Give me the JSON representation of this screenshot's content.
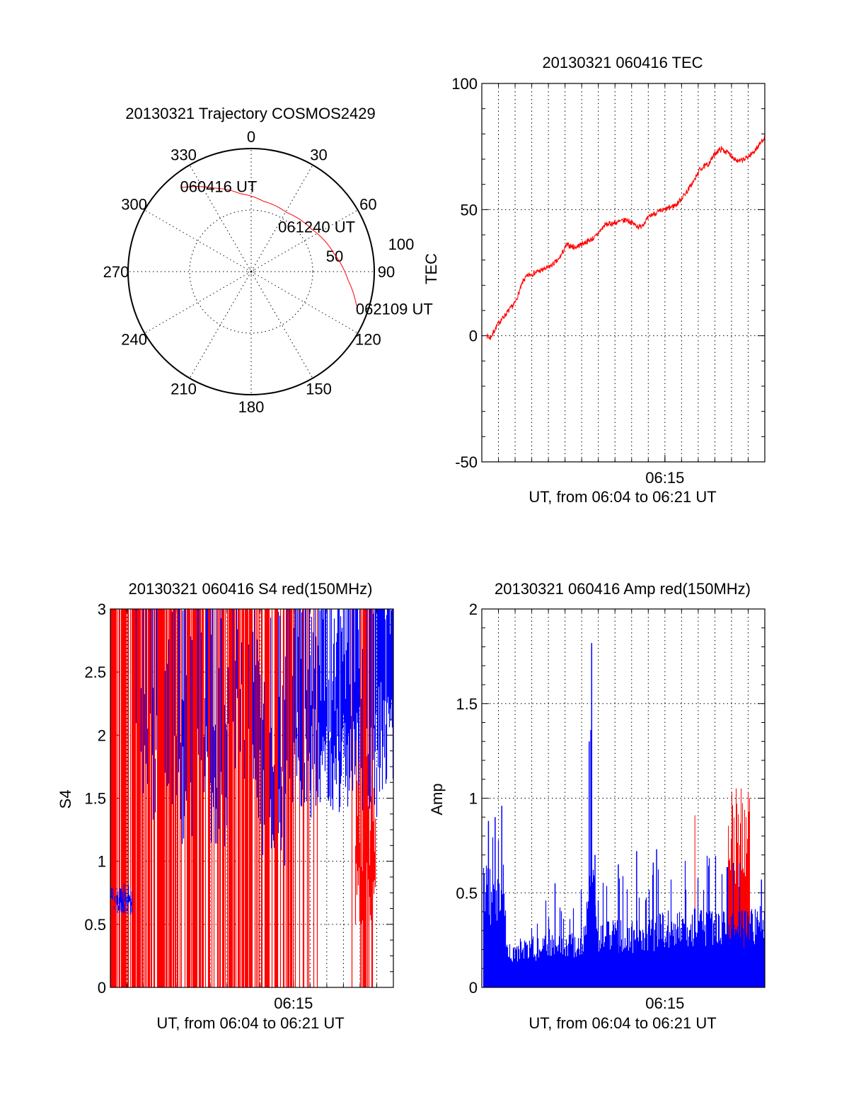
{
  "chart_data": [
    {
      "type": "polar",
      "title": "20130321 Trajectory COSMOS2429",
      "angle_labels": [
        "0",
        "30",
        "60",
        "90",
        "120",
        "150",
        "180",
        "210",
        "240",
        "270",
        "300",
        "330"
      ],
      "radial_labels": [
        "50",
        "100"
      ],
      "radial_axis_label": "TEC",
      "rlim": [
        0,
        100
      ],
      "series": [
        {
          "name": "trajectory",
          "color": "#ff0000",
          "points_az_r": [
            [
              320,
              89
            ],
            [
              335,
              75
            ],
            [
              352,
              64
            ],
            [
              10,
              58
            ],
            [
              31,
              56
            ],
            [
              55,
              60
            ],
            [
              78,
              69
            ],
            [
              95,
              79
            ],
            [
              108,
              90
            ]
          ]
        }
      ],
      "annotations": [
        {
          "text": "060416 UT",
          "az": 320,
          "r": 89
        },
        {
          "text": "061240 UT",
          "az": 31,
          "r": 56
        },
        {
          "text": "062109 UT",
          "az": 108,
          "r": 90
        }
      ]
    },
    {
      "type": "line",
      "title": "20130321 060416 TEC",
      "xlabel": "UT, from 06:04 to 06:21 UT",
      "ylabel": "",
      "x_unit": "minutes after 06:04",
      "xlim": [
        0,
        17
      ],
      "ylim": [
        -50,
        100
      ],
      "yticks": [
        "100",
        "50",
        "0",
        "-50"
      ],
      "xticks": [
        {
          "t": 11,
          "label": "06:15"
        }
      ],
      "grid": true,
      "series": [
        {
          "name": "TEC",
          "color": "#ff0000",
          "points": [
            [
              0.3,
              0
            ],
            [
              0.5,
              -1
            ],
            [
              1,
              5
            ],
            [
              1.5,
              9
            ],
            [
              2,
              13
            ],
            [
              2.5,
              22
            ],
            [
              2.8,
              24
            ],
            [
              4,
              27
            ],
            [
              4.6,
              30
            ],
            [
              5.1,
              36
            ],
            [
              5.6,
              35
            ],
            [
              5.9,
              36
            ],
            [
              6.8,
              39
            ],
            [
              7.4,
              44
            ],
            [
              8.2,
              45
            ],
            [
              8.7,
              46
            ],
            [
              9.2,
              44
            ],
            [
              9.5,
              43
            ],
            [
              10.2,
              48
            ],
            [
              11,
              50
            ],
            [
              11.7,
              52
            ],
            [
              12.3,
              57
            ],
            [
              12.8,
              62
            ],
            [
              13.1,
              66
            ],
            [
              13.6,
              68
            ],
            [
              14.1,
              73
            ],
            [
              14.4,
              74
            ],
            [
              14.9,
              72
            ],
            [
              15.4,
              69
            ],
            [
              15.8,
              70
            ],
            [
              16.2,
              72
            ],
            [
              16.6,
              75
            ],
            [
              17,
              79
            ]
          ]
        }
      ]
    },
    {
      "type": "bar",
      "title": "20130321 060416 S4 red(150MHz)",
      "xlabel": "UT, from 06:04 to 06:21 UT",
      "ylabel": "S4",
      "x_unit": "minutes after 06:04",
      "xlim": [
        0,
        17
      ],
      "ylim": [
        0,
        3
      ],
      "yticks": [
        "3",
        "2.5",
        "2",
        "1.5",
        "1",
        "0.5",
        "0"
      ],
      "xticks": [
        {
          "t": 11,
          "label": "06:15"
        }
      ],
      "grid": true,
      "series": [
        {
          "name": "red",
          "color": "#ff0000",
          "full_range_fraction_per_minute": [
            0.7,
            0.75,
            0.6,
            0.65,
            0.5,
            0.55,
            0.6,
            0.6,
            0.55,
            0.5,
            0.45,
            0.15,
            0.1,
            0.02,
            0.05,
            0.3,
            0.05
          ],
          "dip_window": [
            14.7,
            15.9
          ],
          "dip_range": [
            0.5,
            1.5
          ]
        },
        {
          "name": "blue",
          "color": "#0000ff",
          "quiet_window": [
            0,
            1.3
          ],
          "quiet_level": 0.7,
          "typical_lower_per_minute": [
            1.5,
            1.5,
            1.6,
            1.6,
            1.4,
            1.8,
            1.3,
            2.0,
            1.5,
            1.2,
            1.2,
            1.7,
            1.6,
            1.6,
            1.7,
            1.6,
            1.8
          ]
        }
      ]
    },
    {
      "type": "bar",
      "title": "20130321 060416 Amp red(150MHz)",
      "xlabel": "UT, from 06:04 to 06:21 UT",
      "ylabel": "Amp",
      "x_unit": "minutes after 06:04",
      "xlim": [
        0,
        17
      ],
      "ylim": [
        0,
        2
      ],
      "yticks": [
        "2",
        "1.5",
        "1",
        "0.5",
        "0"
      ],
      "xticks": [
        {
          "t": 11,
          "label": "06:15"
        }
      ],
      "grid": true,
      "series": [
        {
          "name": "blue",
          "color": "#0000ff",
          "envelope": [
            [
              0,
              0.55
            ],
            [
              1.3,
              0.55
            ],
            [
              1.4,
              0.22
            ],
            [
              5,
              0.24
            ],
            [
              6.2,
              0.27
            ],
            [
              6.4,
              0.6
            ],
            [
              6.7,
              0.6
            ],
            [
              6.9,
              0.3
            ],
            [
              10,
              0.3
            ],
            [
              11,
              0.35
            ],
            [
              16,
              0.35
            ],
            [
              17,
              0.4
            ]
          ],
          "spikes": [
            [
              6.6,
              1.82
            ],
            [
              6.55,
              1.36
            ],
            [
              6.45,
              1.3
            ],
            [
              1.2,
              0.96
            ],
            [
              0.8,
              0.9
            ],
            [
              0.4,
              0.88
            ],
            [
              6.8,
              0.7
            ],
            [
              9.3,
              0.72
            ],
            [
              10.5,
              0.73
            ],
            [
              8.2,
              0.65
            ],
            [
              10.3,
              0.66
            ],
            [
              4.4,
              0.55
            ],
            [
              16.8,
              0.57
            ]
          ]
        },
        {
          "name": "red",
          "color": "#ff0000",
          "window": [
            14.7,
            16.1
          ],
          "range": [
            0.5,
            1.06
          ],
          "spikes": [
            [
              12.8,
              0.91
            ]
          ]
        }
      ]
    }
  ]
}
